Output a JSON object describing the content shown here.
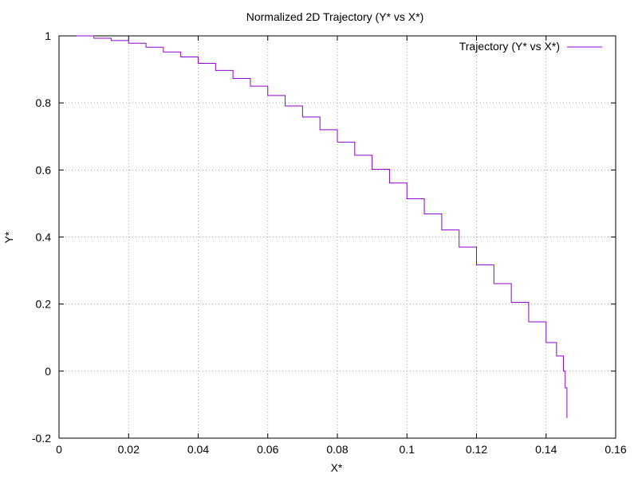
{
  "chart_data": {
    "type": "line",
    "title": "Normalized 2D Trajectory (Y* vs X*)",
    "xlabel": "X*",
    "ylabel": "Y*",
    "xlim": [
      0,
      0.16
    ],
    "ylim": [
      -0.2,
      1
    ],
    "xticks": [
      0,
      0.02,
      0.04,
      0.06,
      0.08,
      0.1,
      0.12,
      0.14,
      0.16
    ],
    "xtick_labels": [
      "0",
      "0.02",
      "0.04",
      "0.06",
      "0.08",
      "0.1",
      "0.12",
      "0.14",
      "0.16"
    ],
    "yticks": [
      -0.2,
      0,
      0.2,
      0.4,
      0.6,
      0.8,
      1
    ],
    "ytick_labels": [
      "-0.2",
      "0",
      "0.2",
      "0.4",
      "0.6",
      "0.8",
      "1"
    ],
    "grid": true,
    "legend_position": "top-right",
    "line_style": "steps",
    "series": [
      {
        "name": "Trajectory (Y* vs X*)",
        "color": "#9400d3",
        "x": [
          0.005,
          0.01,
          0.015,
          0.02,
          0.025,
          0.03,
          0.035,
          0.04,
          0.045,
          0.05,
          0.055,
          0.06,
          0.065,
          0.07,
          0.075,
          0.08,
          0.085,
          0.09,
          0.095,
          0.1,
          0.105,
          0.11,
          0.115,
          0.12,
          0.125,
          0.13,
          0.135,
          0.14,
          0.143,
          0.145,
          0.1455,
          0.146,
          0.146
        ],
        "y": [
          1.0,
          0.993,
          0.986,
          0.978,
          0.966,
          0.952,
          0.937,
          0.918,
          0.897,
          0.873,
          0.85,
          0.822,
          0.791,
          0.758,
          0.72,
          0.683,
          0.644,
          0.602,
          0.561,
          0.514,
          0.469,
          0.421,
          0.37,
          0.317,
          0.261,
          0.205,
          0.147,
          0.085,
          0.045,
          0.0,
          -0.05,
          -0.07,
          -0.14
        ]
      }
    ]
  }
}
